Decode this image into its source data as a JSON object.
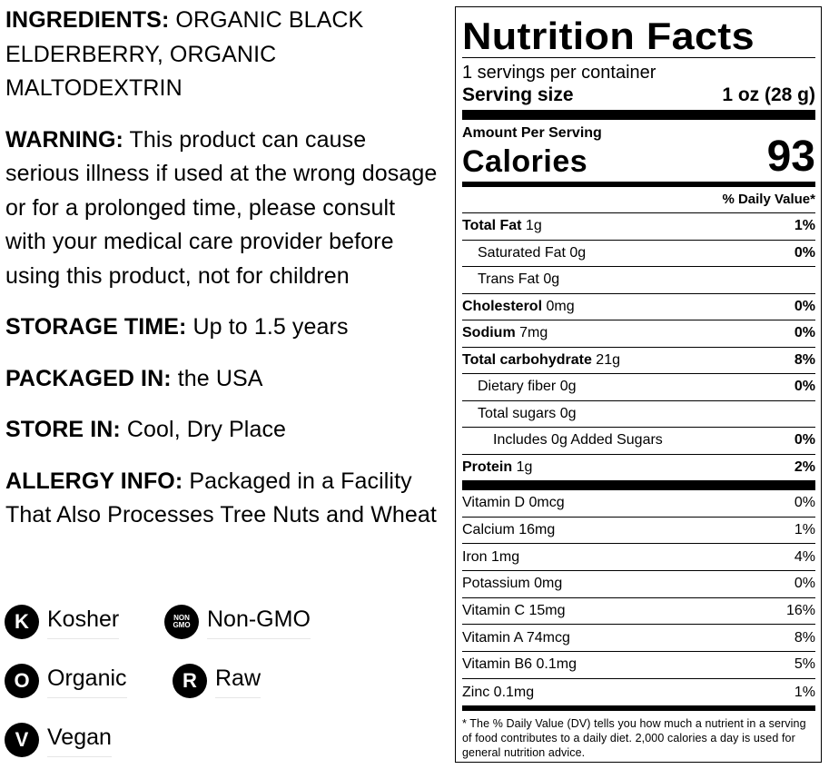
{
  "left": {
    "ingredients": {
      "key": "INGREDIENTS:",
      "value": " ORGANIC BLACK ELDERBERRY, ORGANIC MALTODEXTRIN"
    },
    "warning": {
      "key": "WARNING:",
      "value": " This product can cause serious illness if used at the wrong dosage or for a prolonged time, please consult with your medical care provider before using this product, not for children"
    },
    "storage_time": {
      "key": "STORAGE TIME:",
      "value": " Up to 1.5 years"
    },
    "packaged_in": {
      "key": "PACKAGED IN:",
      "value": " the USA"
    },
    "store_in": {
      "key": "STORE IN:",
      "value": " Cool, Dry Place"
    },
    "allergy": {
      "key": "ALLERGY INFO:",
      "value": " Packaged in a Facility That Also Processes Tree Nuts and Wheat"
    }
  },
  "badges": [
    {
      "glyph": "K",
      "label": "Kosher",
      "icon": "kosher-icon"
    },
    {
      "glyph": "NON GMO",
      "label": "Non-GMO",
      "icon": "non-gmo-icon"
    },
    {
      "glyph": "O",
      "label": "Organic",
      "icon": "organic-icon"
    },
    {
      "glyph": "R",
      "label": "Raw",
      "icon": "raw-icon"
    },
    {
      "glyph": "V",
      "label": "Vegan",
      "icon": "vegan-icon"
    }
  ],
  "nutrition": {
    "title": "Nutrition Facts",
    "servings": "1 servings per container",
    "serving_size_label": "Serving size",
    "serving_size_value": "1 oz (28 g)",
    "amount_per_serving": "Amount Per Serving",
    "calories_label": "Calories",
    "calories_value": "93",
    "dv_header": "% Daily Value*",
    "rows": [
      {
        "name": "Total Fat",
        "amount": " 1g",
        "pct": "1%"
      },
      {
        "name": "Saturated Fat 0g",
        "amount": "",
        "pct": "0%"
      },
      {
        "name": "Trans Fat 0g",
        "amount": "",
        "pct": ""
      },
      {
        "name": "Cholesterol",
        "amount": " 0mg",
        "pct": "0%"
      },
      {
        "name": "Sodium",
        "amount": " 7mg",
        "pct": "0%"
      },
      {
        "name": "Total carbohydrate",
        "amount": " 21g",
        "pct": "8%"
      },
      {
        "name": "Dietary fiber 0g",
        "amount": "",
        "pct": "0%"
      },
      {
        "name": "Total sugars 0g",
        "amount": "",
        "pct": ""
      },
      {
        "name": "Includes 0g Added Sugars",
        "amount": "",
        "pct": "0%"
      },
      {
        "name": "Protein",
        "amount": " 1g",
        "pct": "2%"
      }
    ],
    "vitamins": [
      {
        "name": "Vitamin D 0mcg",
        "pct": "0%"
      },
      {
        "name": "Calcium 16mg",
        "pct": "1%"
      },
      {
        "name": "Iron 1mg",
        "pct": "4%"
      },
      {
        "name": "Potassium 0mg",
        "pct": "0%"
      },
      {
        "name": "Vitamin C 15mg",
        "pct": "16%"
      },
      {
        "name": "Vitamin A 74mcg",
        "pct": "8%"
      },
      {
        "name": "Vitamin B6 0.1mg",
        "pct": "5%"
      },
      {
        "name": "Zinc 0.1mg",
        "pct": "1%"
      }
    ],
    "footnote": "* The % Daily Value (DV) tells you how much a nutrient in a serving of food contributes to a daily diet. 2,000 calories a day is used for general nutrition advice."
  }
}
